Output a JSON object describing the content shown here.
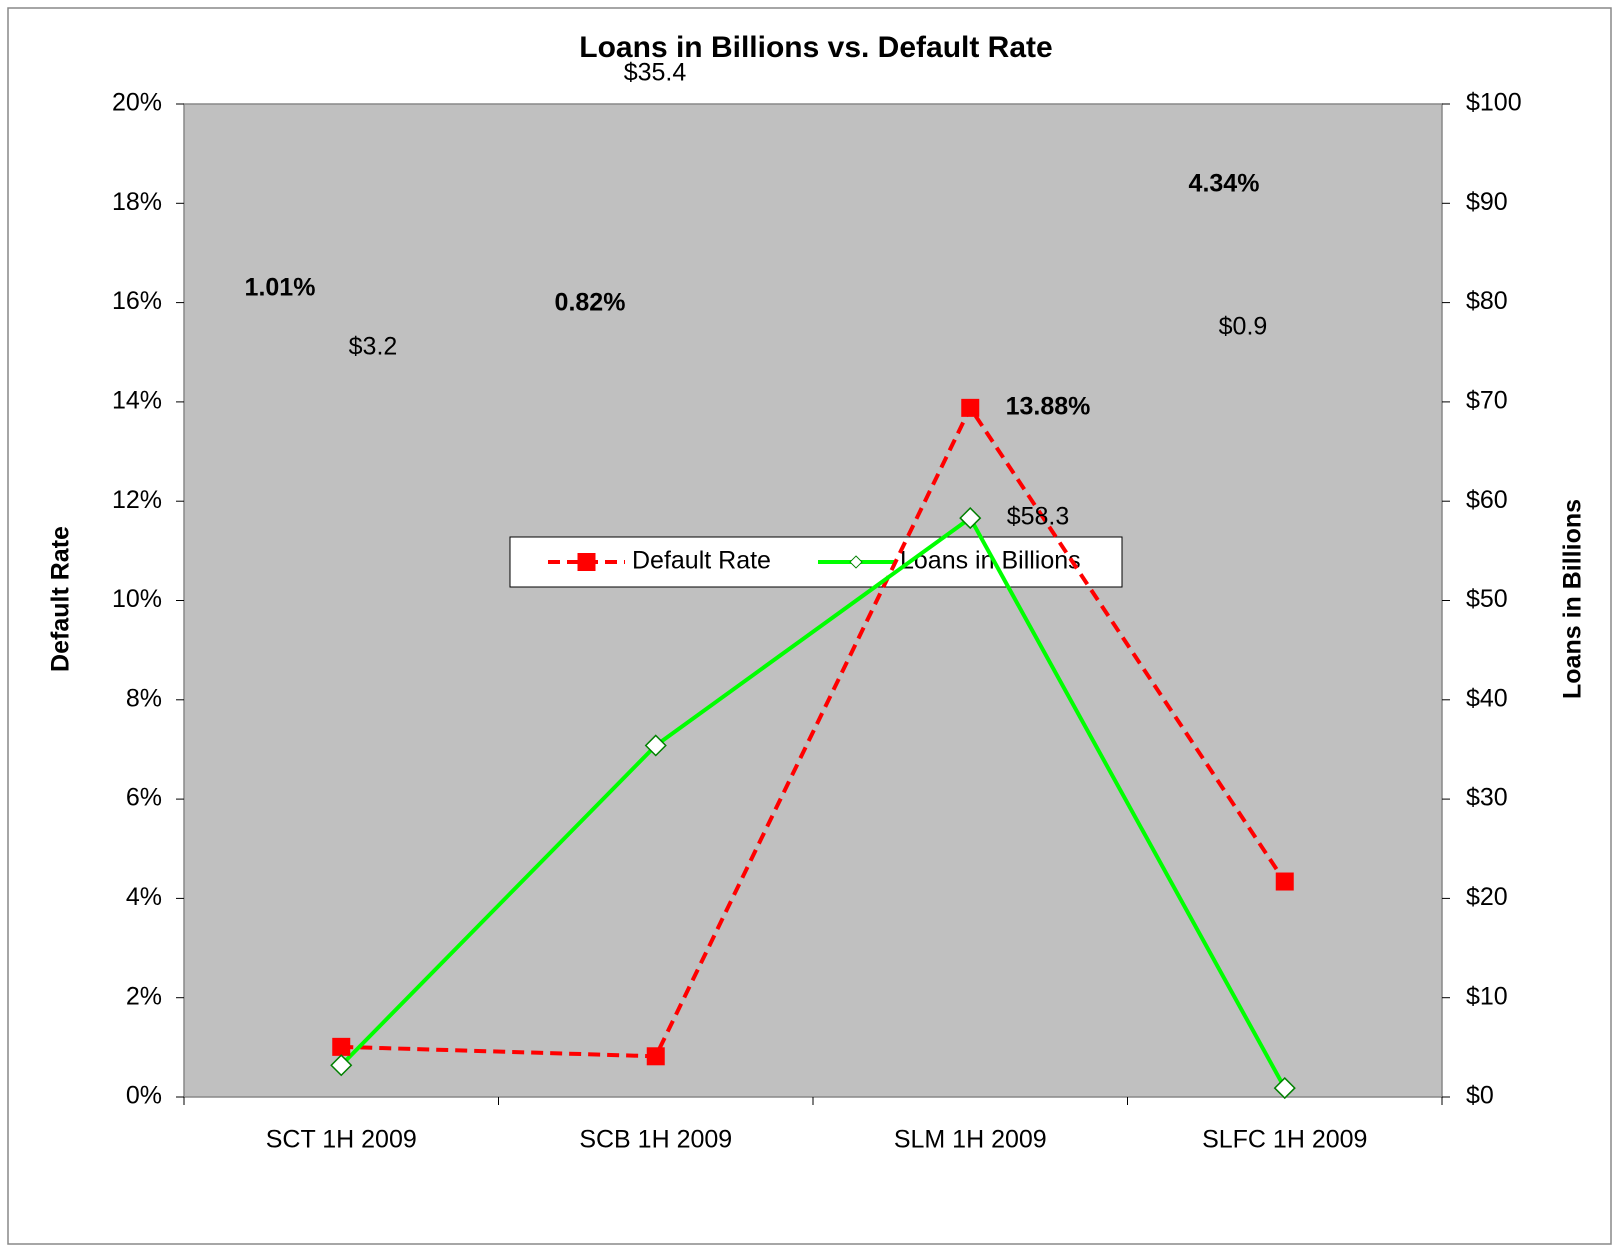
{
  "chart_data": {
    "type": "line",
    "title": "Loans in Billions vs. Default Rate",
    "categories": [
      "SCT 1H 2009",
      "SCB 1H 2009",
      "SLM 1H 2009",
      "SLFC 1H 2009"
    ],
    "ylabel": "Default Rate",
    "y2label": "Loans in Billions",
    "ylim": [
      0,
      20
    ],
    "yticks": [
      {
        "value": 0,
        "label": "0%"
      },
      {
        "value": 2,
        "label": "2%"
      },
      {
        "value": 4,
        "label": "4%"
      },
      {
        "value": 6,
        "label": "6%"
      },
      {
        "value": 8,
        "label": "8%"
      },
      {
        "value": 10,
        "label": "10%"
      },
      {
        "value": 12,
        "label": "12%"
      },
      {
        "value": 14,
        "label": "14%"
      },
      {
        "value": 16,
        "label": "16%"
      },
      {
        "value": 18,
        "label": "18%"
      },
      {
        "value": 20,
        "label": "20%"
      }
    ],
    "y2lim": [
      0,
      100
    ],
    "y2ticks": [
      {
        "value": 0,
        "label": "$0"
      },
      {
        "value": 10,
        "label": "$10"
      },
      {
        "value": 20,
        "label": "$20"
      },
      {
        "value": 30,
        "label": "$30"
      },
      {
        "value": 40,
        "label": "$40"
      },
      {
        "value": 50,
        "label": "$50"
      },
      {
        "value": 60,
        "label": "$60"
      },
      {
        "value": 70,
        "label": "$70"
      },
      {
        "value": 80,
        "label": "$80"
      },
      {
        "value": 90,
        "label": "$90"
      },
      {
        "value": 100,
        "label": "$100"
      }
    ],
    "grid": false,
    "legend": "center",
    "series": [
      {
        "name": "Default Rate",
        "color": "#ff0000",
        "dashed": true,
        "marker": "square",
        "values": [
          1.01,
          0.82,
          13.88,
          4.34
        ],
        "value_labels": [
          "1.01%",
          "0.82%",
          "13.88%",
          "4.34%"
        ]
      },
      {
        "name": "Loans in Billions",
        "color": "#00ff00",
        "dashed": false,
        "marker": "diamond",
        "axis": "y2",
        "values": [
          3.2,
          35.4,
          58.3,
          0.9
        ],
        "value_labels": [
          "$3.2",
          "$35.4",
          "$58.3",
          "$0.9"
        ]
      }
    ]
  }
}
